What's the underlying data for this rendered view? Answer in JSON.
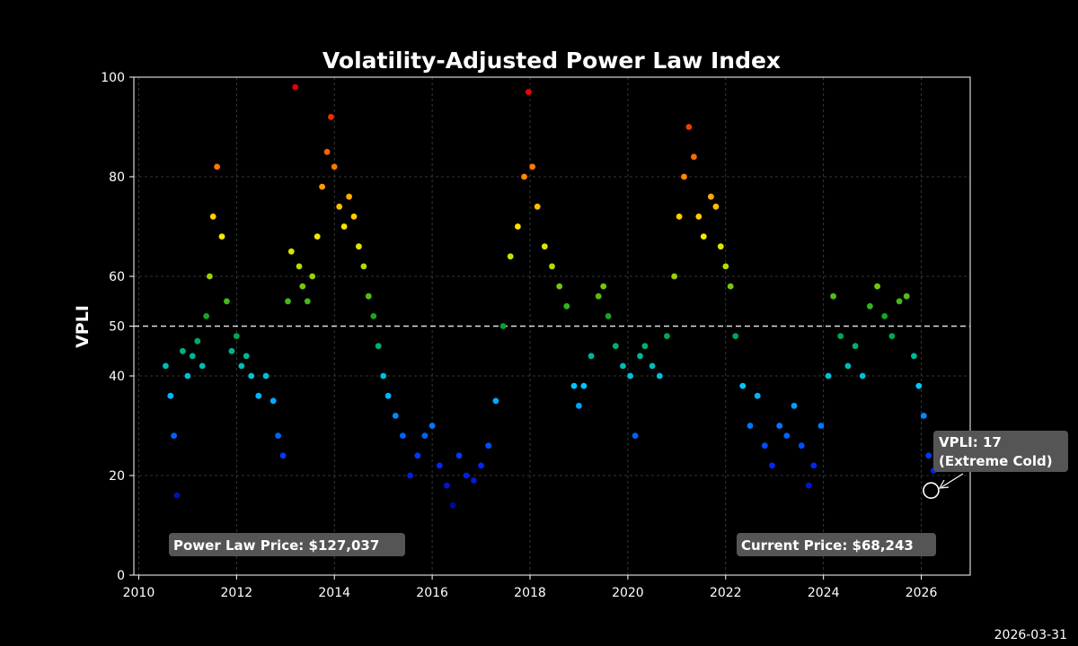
{
  "chart_data": {
    "type": "scatter",
    "title": "Volatility-Adjusted Power Law Index",
    "xlabel": "",
    "ylabel": "VPLI",
    "xlim": [
      2009.9,
      2027.0
    ],
    "ylim": [
      0,
      100
    ],
    "x_ticks": [
      2010,
      2012,
      2014,
      2016,
      2018,
      2020,
      2022,
      2024,
      2026
    ],
    "y_ticks": [
      0,
      20,
      40,
      50,
      60,
      80,
      100
    ],
    "grid": true,
    "reference_line": {
      "y": 50,
      "style": "dashed"
    },
    "color_scale": "jet (low = blue, high = red)",
    "series": [
      {
        "name": "VPLI",
        "x": [
          2010.55,
          2010.65,
          2010.72,
          2010.78,
          2010.9,
          2011.0,
          2011.1,
          2011.2,
          2011.3,
          2011.38,
          2011.45,
          2011.52,
          2011.6,
          2011.7,
          2011.8,
          2011.9,
          2012.0,
          2012.1,
          2012.2,
          2012.3,
          2012.45,
          2012.6,
          2012.75,
          2012.85,
          2012.95,
          2013.05,
          2013.12,
          2013.2,
          2013.28,
          2013.35,
          2013.45,
          2013.55,
          2013.65,
          2013.75,
          2013.85,
          2013.93,
          2014.0,
          2014.1,
          2014.2,
          2014.3,
          2014.4,
          2014.5,
          2014.6,
          2014.7,
          2014.8,
          2014.9,
          2015.0,
          2015.1,
          2015.25,
          2015.4,
          2015.55,
          2015.7,
          2015.85,
          2016.0,
          2016.15,
          2016.3,
          2016.42,
          2016.55,
          2016.7,
          2016.85,
          2017.0,
          2017.15,
          2017.3,
          2017.45,
          2017.6,
          2017.75,
          2017.88,
          2017.97,
          2018.05,
          2018.15,
          2018.3,
          2018.45,
          2018.6,
          2018.75,
          2018.9,
          2019.0,
          2019.1,
          2019.25,
          2019.4,
          2019.5,
          2019.6,
          2019.75,
          2019.9,
          2020.05,
          2020.15,
          2020.25,
          2020.35,
          2020.5,
          2020.65,
          2020.8,
          2020.95,
          2021.05,
          2021.15,
          2021.25,
          2021.35,
          2021.45,
          2021.55,
          2021.7,
          2021.8,
          2021.9,
          2022.0,
          2022.1,
          2022.2,
          2022.35,
          2022.5,
          2022.65,
          2022.8,
          2022.95,
          2023.1,
          2023.25,
          2023.4,
          2023.55,
          2023.7,
          2023.8,
          2023.95,
          2024.1,
          2024.2,
          2024.35,
          2024.5,
          2024.65,
          2024.8,
          2024.95,
          2025.1,
          2025.25,
          2025.4,
          2025.55,
          2025.7,
          2025.85,
          2025.95,
          2026.05,
          2026.15,
          2026.25
        ],
        "y": [
          42,
          36,
          28,
          16,
          45,
          40,
          44,
          47,
          42,
          52,
          60,
          72,
          82,
          68,
          55,
          45,
          48,
          42,
          44,
          40,
          36,
          40,
          35,
          28,
          24,
          55,
          65,
          98,
          62,
          58,
          55,
          60,
          68,
          78,
          85,
          92,
          82,
          74,
          70,
          76,
          72,
          66,
          62,
          56,
          52,
          46,
          40,
          36,
          32,
          28,
          20,
          24,
          28,
          30,
          22,
          18,
          14,
          24,
          20,
          19,
          22,
          26,
          35,
          50,
          64,
          70,
          80,
          97,
          82,
          74,
          66,
          62,
          58,
          54,
          38,
          34,
          38,
          44,
          56,
          58,
          52,
          46,
          42,
          40,
          28,
          44,
          46,
          42,
          40,
          48,
          60,
          72,
          80,
          90,
          84,
          72,
          68,
          76,
          74,
          66,
          62,
          58,
          48,
          38,
          30,
          36,
          26,
          22,
          30,
          28,
          34,
          26,
          18,
          22,
          30,
          40,
          56,
          48,
          42,
          46,
          40,
          54,
          58,
          52,
          48,
          55,
          56,
          44,
          38,
          32,
          24,
          21
        ]
      }
    ],
    "current_point": {
      "x": 2026.2,
      "y": 17
    },
    "annotations": {
      "current": {
        "line1": "VPLI: 17",
        "line2": "(Extreme Cold)"
      },
      "power_law_price": "Power Law Price: $127,037",
      "current_price": "Current Price: $68,243"
    }
  },
  "footer": {
    "date": "2026-03-31"
  }
}
